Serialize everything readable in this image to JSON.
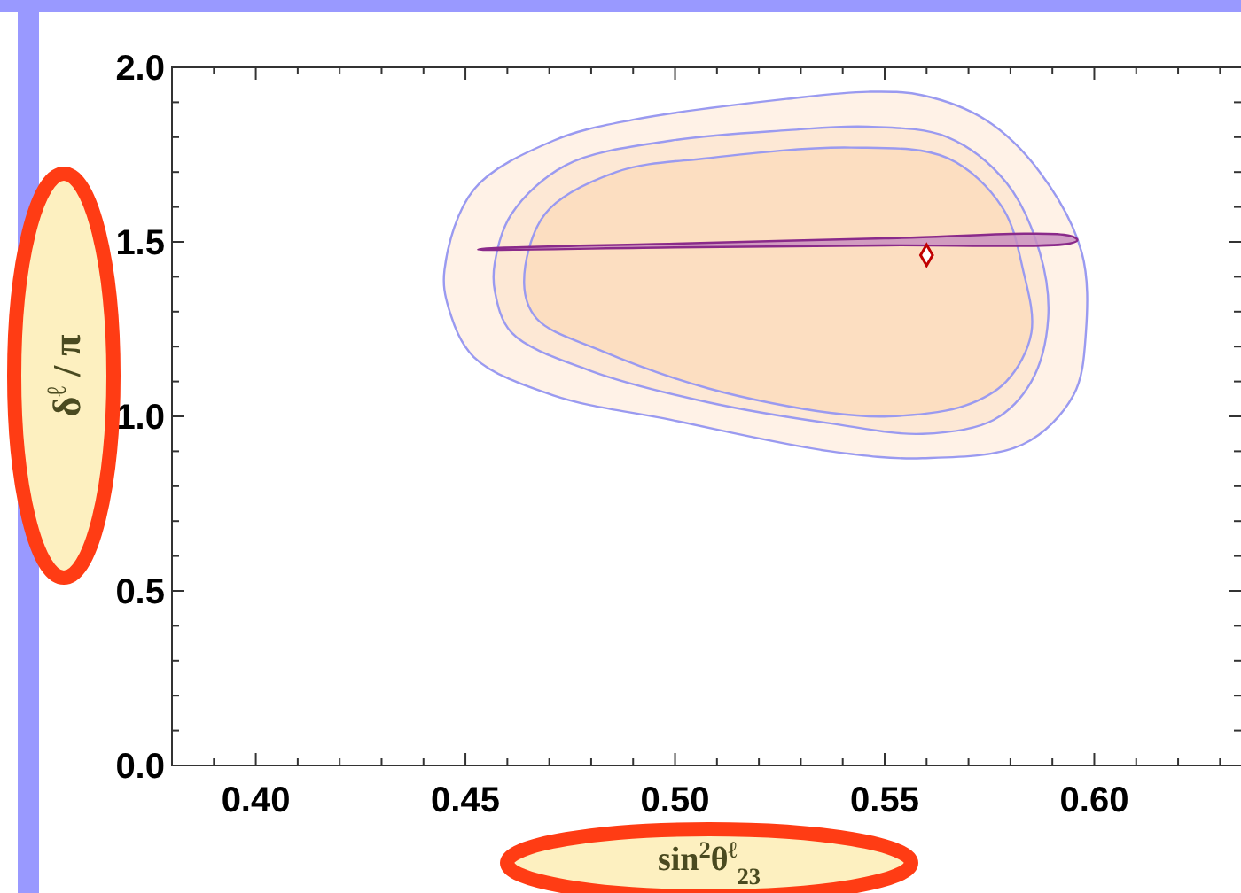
{
  "chart_data": {
    "type": "area",
    "xlabel": "sin$^{2}$θ$^{ℓ}$$_{23}$",
    "ylabel": "δ$^{ℓ}$ / π",
    "xlim": [
      0.38,
      0.635
    ],
    "ylim": [
      0,
      2
    ],
    "xticks": [
      {
        "value": 0.38,
        "label": null
      },
      {
        "value": 0.39,
        "label": null
      },
      {
        "value": 0.4,
        "label": "0.40"
      },
      {
        "value": 0.41,
        "label": null
      },
      {
        "value": 0.42,
        "label": null
      },
      {
        "value": 0.43,
        "label": null
      },
      {
        "value": 0.44,
        "label": null
      },
      {
        "value": 0.45,
        "label": "0.45"
      },
      {
        "value": 0.46,
        "label": null
      },
      {
        "value": 0.47,
        "label": null
      },
      {
        "value": 0.48,
        "label": null
      },
      {
        "value": 0.49,
        "label": null
      },
      {
        "value": 0.5,
        "label": "0.50"
      },
      {
        "value": 0.51,
        "label": null
      },
      {
        "value": 0.52,
        "label": null
      },
      {
        "value": 0.53,
        "label": null
      },
      {
        "value": 0.54,
        "label": null
      },
      {
        "value": 0.55,
        "label": "0.55"
      },
      {
        "value": 0.56,
        "label": null
      },
      {
        "value": 0.57,
        "label": null
      },
      {
        "value": 0.58,
        "label": null
      },
      {
        "value": 0.59,
        "label": null
      },
      {
        "value": 0.6,
        "label": "0.60"
      },
      {
        "value": 0.61,
        "label": null
      },
      {
        "value": 0.62,
        "label": null
      },
      {
        "value": 0.63,
        "label": null
      }
    ],
    "yticks": [
      {
        "value": 0,
        "label": "0.0"
      },
      {
        "value": 0.1,
        "label": null
      },
      {
        "value": 0.2,
        "label": null
      },
      {
        "value": 0.3,
        "label": null
      },
      {
        "value": 0.4,
        "label": null
      },
      {
        "value": 0.5,
        "label": "0.5"
      },
      {
        "value": 0.6,
        "label": null
      },
      {
        "value": 0.7,
        "label": null
      },
      {
        "value": 0.8,
        "label": null
      },
      {
        "value": 0.9,
        "label": null
      },
      {
        "value": 1,
        "label": "1.0"
      },
      {
        "value": 1.1,
        "label": null
      },
      {
        "value": 1.2,
        "label": null
      },
      {
        "value": 1.3,
        "label": null
      },
      {
        "value": 1.4,
        "label": null
      },
      {
        "value": 1.5,
        "label": "1.5"
      },
      {
        "value": 1.6,
        "label": null
      },
      {
        "value": 1.7,
        "label": null
      },
      {
        "value": 1.8,
        "label": null
      },
      {
        "value": 1.9,
        "label": null
      },
      {
        "value": 2,
        "label": "2.0"
      }
    ],
    "series": [
      {
        "color": "#fff0e3",
        "x": [
          0.445,
          0.452,
          0.471,
          0.49,
          0.527,
          0.546,
          0.559,
          0.574,
          0.587,
          0.597,
          0.598,
          0.595,
          0.583,
          0.559,
          0.537,
          0.499,
          0.471,
          0.452,
          0.446
        ],
        "values": [
          1.42,
          1.65,
          1.79,
          1.85,
          1.91,
          1.93,
          1.92,
          1.85,
          1.7,
          1.47,
          1.24,
          1.06,
          0.92,
          0.88,
          0.9,
          0.99,
          1.06,
          1.17,
          1.31
        ]
      },
      {
        "color": "#fde6d1",
        "x": [
          0.457,
          0.461,
          0.474,
          0.499,
          0.527,
          0.546,
          0.565,
          0.579,
          0.587,
          0.589,
          0.585,
          0.576,
          0.559,
          0.537,
          0.508,
          0.48,
          0.461,
          0.457
        ],
        "values": [
          1.44,
          1.58,
          1.72,
          1.79,
          1.82,
          1.83,
          1.8,
          1.67,
          1.47,
          1.28,
          1.1,
          0.99,
          0.95,
          0.98,
          1.04,
          1.13,
          1.24,
          1.36
        ]
      },
      {
        "color": "#fcdcbd",
        "x": [
          0.464,
          0.469,
          0.486,
          0.508,
          0.542,
          0.565,
          0.578,
          0.583,
          0.585,
          0.579,
          0.569,
          0.551,
          0.537,
          0.508,
          0.482,
          0.467
        ],
        "values": [
          1.38,
          1.58,
          1.7,
          1.74,
          1.77,
          1.74,
          1.6,
          1.42,
          1.24,
          1.1,
          1.03,
          1.0,
          1.01,
          1.08,
          1.19,
          1.28
        ]
      },
      {
        "color": "#c98fc0",
        "x": [
          0.453,
          0.5,
          0.55,
          0.594,
          0.596,
          0.594,
          0.55,
          0.5,
          0.455
        ],
        "values": [
          1.478,
          1.484,
          1.49,
          1.495,
          1.505,
          1.518,
          1.51,
          1.495,
          1.481
        ]
      },
      {
        "type": "scatter",
        "marker": "diamond",
        "color": "#c00000",
        "x": [
          0.56
        ],
        "values": [
          1.462
        ]
      }
    ]
  }
}
